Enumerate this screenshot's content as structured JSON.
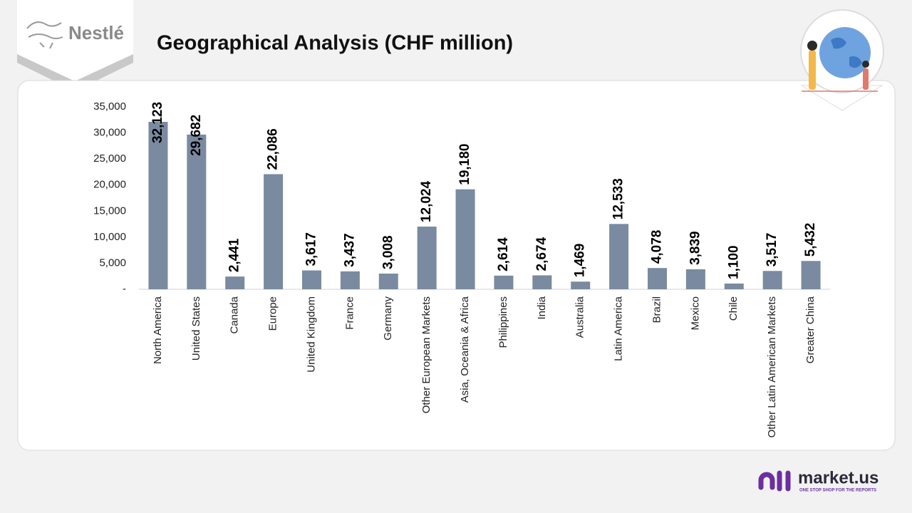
{
  "logo": {
    "text": "Nestlé"
  },
  "brand": {
    "name": "market.us",
    "tagline": "ONE STOP SHOP FOR THE REPORTS"
  },
  "chart_data": {
    "type": "bar",
    "title": "Geographical Analysis (CHF million)",
    "categories": [
      "North America",
      "United States",
      "Canada",
      "Europe",
      "United Kingdom",
      "France",
      "Germany",
      "Other European Markets",
      "Asia, Oceania & Africa",
      "Philippines",
      "India",
      "Australia",
      "Latin America",
      "Brazil",
      "Mexico",
      "Chile",
      "Other Latin American Markets",
      "Greater China"
    ],
    "values": [
      32123,
      29682,
      2441,
      22086,
      3617,
      3437,
      3008,
      12024,
      19180,
      2614,
      2674,
      1469,
      12533,
      4078,
      3839,
      1100,
      3517,
      5432
    ],
    "value_labels": [
      "32,123",
      "29,682",
      "2,441",
      "22,086",
      "3,617",
      "3,437",
      "3,008",
      "12,024",
      "19,180",
      "2,614",
      "2,674",
      "1,469",
      "12,533",
      "4,078",
      "3,839",
      "1,100",
      "3,517",
      "5,432"
    ],
    "color": "#7a8aa0",
    "ylim": [
      0,
      35000
    ],
    "yticks": [
      {
        "value": 0,
        "label": "-"
      },
      {
        "value": 5000,
        "label": "5,000"
      },
      {
        "value": 10000,
        "label": "10,000"
      },
      {
        "value": 15000,
        "label": "15,000"
      },
      {
        "value": 20000,
        "label": "20,000"
      },
      {
        "value": 25000,
        "label": "25,000"
      },
      {
        "value": 30000,
        "label": "30,000"
      },
      {
        "value": 35000,
        "label": "35,000"
      }
    ],
    "grid": false
  }
}
